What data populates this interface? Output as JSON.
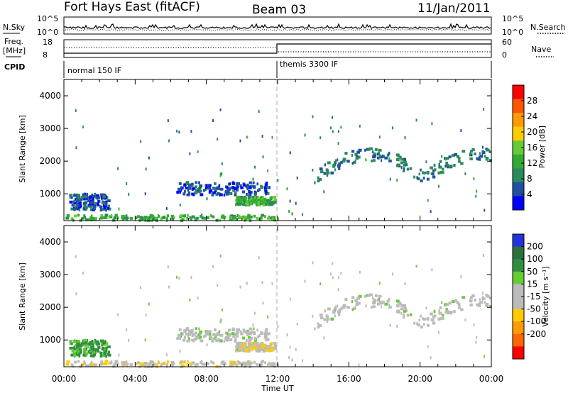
{
  "header": {
    "station": "Fort Hays East (fitACF)",
    "beam": "Beam 03",
    "date": "11/Jan/2011"
  },
  "strip_labels": {
    "nsky": "N.Sky",
    "nsearch": "N.Search",
    "freq_line1": "Freq.",
    "freq_line2": "[MHz]",
    "nave": "Nave",
    "cpid": "CPID",
    "noise_ticks_left": [
      "10^5",
      "10^0"
    ],
    "noise_ticks_right": [
      "10^5",
      "10^0"
    ],
    "freq_ticks": [
      "18",
      "8"
    ],
    "nave_ticks": [
      "60",
      "0"
    ],
    "cpid_modes": [
      "normal 150 IF",
      "themis 3300 IF"
    ]
  },
  "colors": {
    "power": [
      "#0000ff",
      "#2050a0",
      "#2a8a5a",
      "#33aa33",
      "#66cc33",
      "#ffcc00",
      "#ff9900",
      "#ff5500",
      "#ff0000"
    ],
    "velocity": [
      "#2233dd",
      "#2f6f3f",
      "#2f8f3f",
      "#66cc33",
      "#bbbbbb",
      "#bbbbbb",
      "#ffcc00",
      "#ff9900",
      "#ff6600",
      "#ff0000"
    ]
  },
  "chart_data": [
    {
      "type": "heatmap",
      "panel": "power",
      "ylabel": "Slant Range [km]",
      "ylim": [
        180,
        4500
      ],
      "yticks": [
        "1000",
        "2000",
        "3000",
        "4000"
      ],
      "colorbar": {
        "label": "Power [dB]",
        "range": [
          0,
          32
        ],
        "ticks": [
          "4",
          "8",
          "12",
          "16",
          "20",
          "24",
          "28"
        ]
      },
      "echo_regions": [
        {
          "t": [
            0.3,
            2.5
          ],
          "range": [
            500,
            1000
          ],
          "value": 6
        },
        {
          "t": [
            6.2,
            11.4
          ],
          "range": [
            950,
            1350
          ],
          "value": 6
        },
        {
          "t": [
            9.6,
            11.8
          ],
          "range": [
            650,
            900
          ],
          "value": 14
        },
        {
          "t": [
            14.0,
            23.9
          ],
          "range": [
            1150,
            2300
          ],
          "value": 8
        },
        {
          "t": [
            0.0,
            12.0
          ],
          "range": [
            180,
            350
          ],
          "value": 14
        }
      ]
    },
    {
      "type": "heatmap",
      "panel": "velocity",
      "ylabel": "Slant Range [km]",
      "xlabel": "Time UT",
      "ylim": [
        180,
        4500
      ],
      "yticks": [
        "1000",
        "2000",
        "3000",
        "4000"
      ],
      "xticks": [
        "00:00",
        "04:00",
        "08:00",
        "12:00",
        "16:00",
        "20:00",
        "00:00"
      ],
      "colorbar": {
        "label": "Velocity [m s⁻¹]",
        "ticks": [
          "200",
          "100",
          "50",
          "15",
          "-15",
          "-50",
          "-100",
          "-200"
        ]
      },
      "echo_regions": [
        {
          "t": [
            0.3,
            2.5
          ],
          "range": [
            500,
            1000
          ],
          "value": 60
        },
        {
          "t": [
            6.2,
            11.4
          ],
          "range": [
            950,
            1350
          ],
          "value": 0
        },
        {
          "t": [
            8.5,
            11.5
          ],
          "range": [
            650,
            1300
          ],
          "value": -40
        },
        {
          "t": [
            14.0,
            23.9
          ],
          "range": [
            1150,
            2300
          ],
          "value": 0
        },
        {
          "t": [
            0.0,
            12.0
          ],
          "range": [
            180,
            350
          ],
          "value": -40
        }
      ]
    }
  ]
}
